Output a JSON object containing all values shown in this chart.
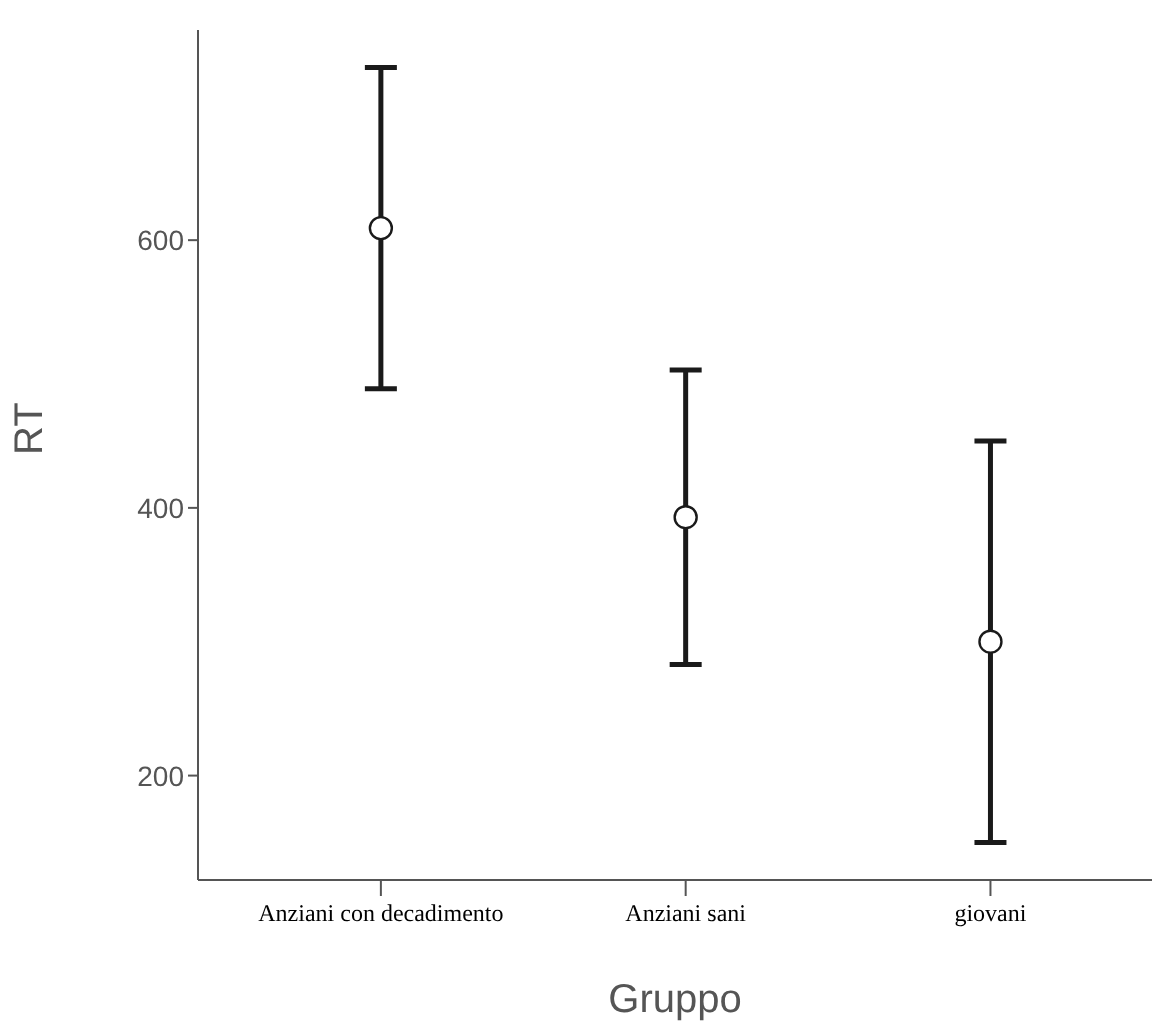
{
  "chart_data": {
    "type": "scatter",
    "categories": [
      "Anziani con decadimento",
      "Anziani sani",
      "giovani"
    ],
    "values": [
      609,
      393,
      300
    ],
    "errors": [
      120,
      110,
      150
    ],
    "color": "#1a1a1a",
    "marker": "circle",
    "xlabel": "Gruppo",
    "ylabel": "RT",
    "ylim": [
      122,
      757
    ],
    "yticks": [
      200,
      400,
      600
    ]
  }
}
